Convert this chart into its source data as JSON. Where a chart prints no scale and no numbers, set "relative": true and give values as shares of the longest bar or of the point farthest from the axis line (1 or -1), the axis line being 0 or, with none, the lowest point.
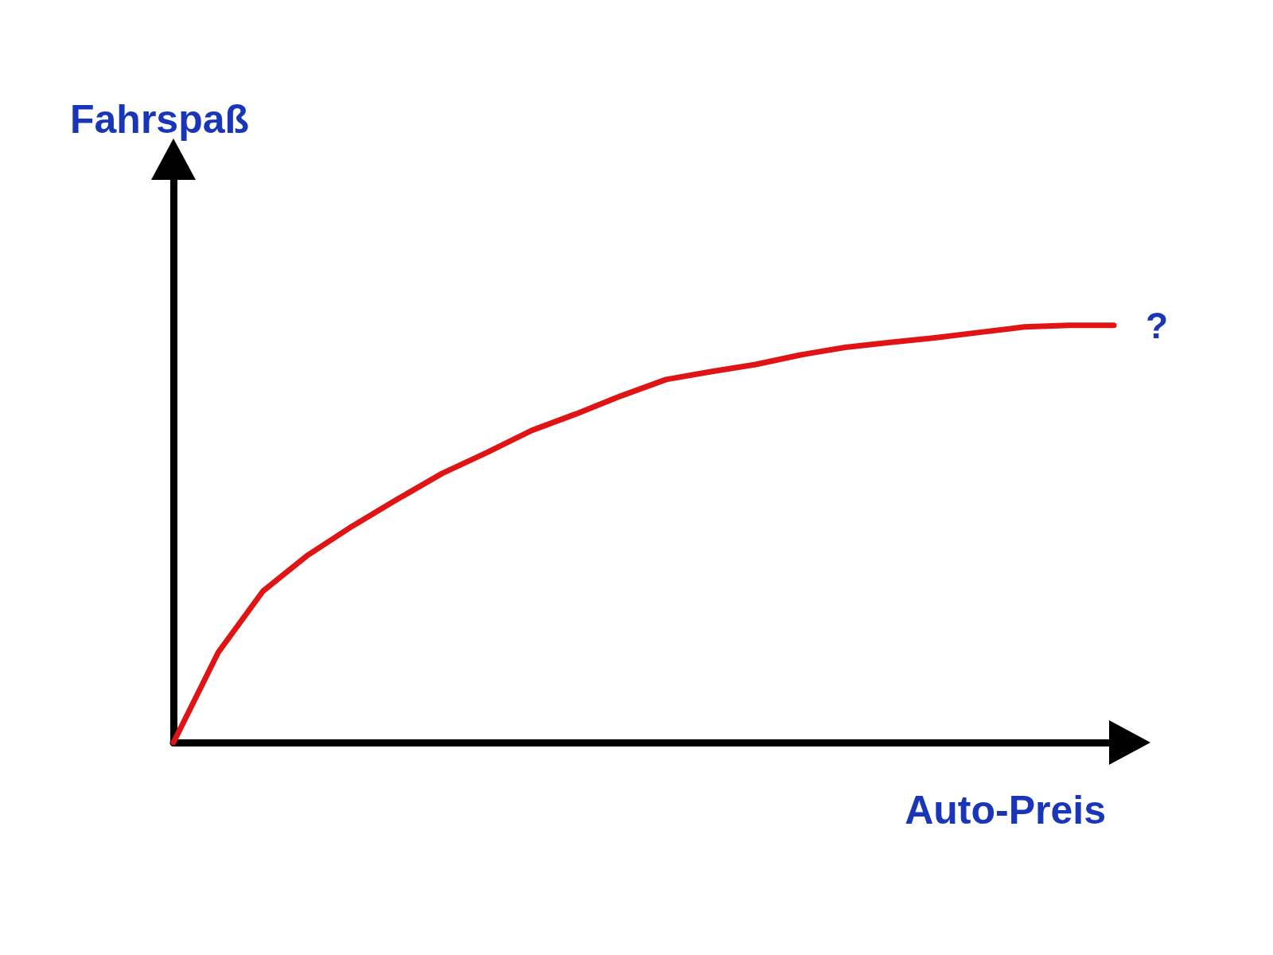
{
  "chart_data": {
    "type": "line",
    "relative": true,
    "xlabel": "Auto-Preis",
    "ylabel": "Fahrspaß",
    "categories": [
      null,
      null,
      null,
      null,
      null,
      null,
      null,
      null,
      null,
      null,
      null,
      null,
      null,
      null,
      null,
      null,
      null,
      null,
      null,
      null,
      null,
      null
    ],
    "series": [
      {
        "color": "#e01414",
        "values": [
          0.0,
          0.216,
          0.363,
          0.449,
          0.519,
          0.583,
          0.645,
          0.695,
          0.748,
          0.788,
          0.831,
          0.87,
          0.889,
          0.906,
          0.929,
          0.947,
          0.959,
          0.97,
          0.983,
          0.996,
          1.0,
          1.0
        ]
      }
    ],
    "annotations": [
      "?"
    ],
    "marker": "none",
    "grid": false
  }
}
